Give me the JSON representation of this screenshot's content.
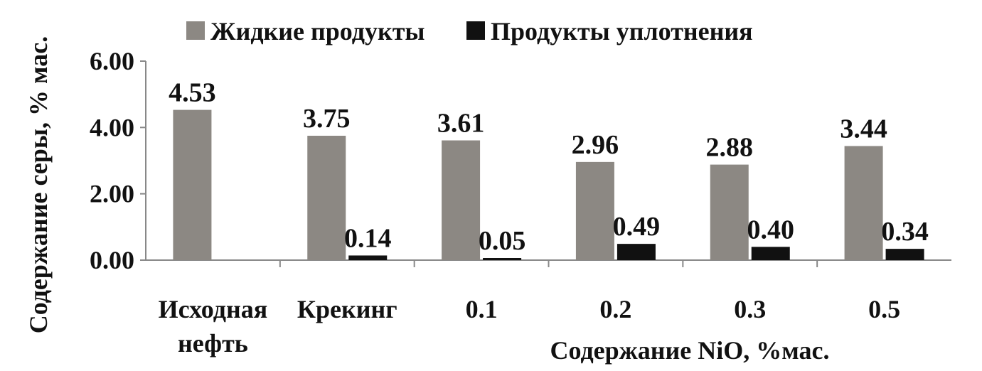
{
  "chart_data": {
    "type": "bar",
    "title": "",
    "ylabel": "Содержание серы, % мас.",
    "xlabel": "Содержание NiO, %мас.",
    "ylim": [
      0,
      6
    ],
    "yticks": [
      "0.00",
      "2.00",
      "4.00",
      "6.00"
    ],
    "yticks_values": [
      0,
      2,
      4,
      6
    ],
    "categories": [
      [
        "Исходная",
        "нефть"
      ],
      [
        "Крекинг"
      ],
      [
        "0.1"
      ],
      [
        "0.2"
      ],
      [
        "0.3"
      ],
      [
        "0.5"
      ]
    ],
    "series": [
      {
        "name": "Жидкие продукты",
        "color": "#8c8883",
        "values": [
          4.53,
          3.75,
          3.61,
          2.96,
          2.88,
          3.44
        ],
        "labels": [
          "4.53",
          "3.75",
          "3.61",
          "2.96",
          "2.88",
          "3.44"
        ]
      },
      {
        "name": "Продукты уплотнения",
        "color": "#111111",
        "values": [
          null,
          0.14,
          0.05,
          0.49,
          0.4,
          0.34
        ],
        "labels": [
          "",
          "0.14",
          "0.05",
          "0.49",
          "0.40",
          "0.34"
        ]
      }
    ],
    "legend_position": "top",
    "grid": false
  }
}
